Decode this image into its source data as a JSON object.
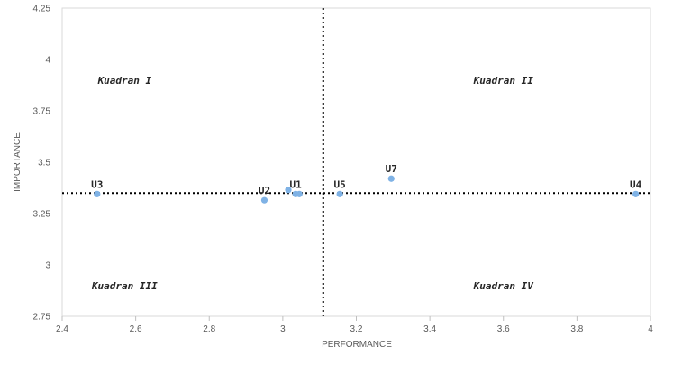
{
  "chart_data": {
    "type": "scatter",
    "xlabel": "PERFORMANCE",
    "ylabel": "IMPORTANCE",
    "xlim": [
      2.4,
      4
    ],
    "ylim": [
      2.75,
      4.25
    ],
    "xticks": [
      "2.4",
      "2.6",
      "2.8",
      "3",
      "3.2",
      "3.4",
      "3.6",
      "3.8",
      "4"
    ],
    "yticks": [
      "2.75",
      "3",
      "3.25",
      "3.5",
      "3.75",
      "4",
      "4.25"
    ],
    "grid": false,
    "marker_color": "#7fb2e5",
    "divider_x": 3.11,
    "divider_y": 3.35,
    "points": [
      {
        "label": "U1",
        "x": 3.035,
        "y": 3.345
      },
      {
        "label": "",
        "x": 3.045,
        "y": 3.345
      },
      {
        "label": "",
        "x": 3.015,
        "y": 3.365
      },
      {
        "label": "U2",
        "x": 2.95,
        "y": 3.315
      },
      {
        "label": "U3",
        "x": 2.495,
        "y": 3.345
      },
      {
        "label": "U4",
        "x": 3.96,
        "y": 3.345
      },
      {
        "label": "U5",
        "x": 3.155,
        "y": 3.345
      },
      {
        "label": "U7",
        "x": 3.295,
        "y": 3.42
      }
    ],
    "quadrants": [
      {
        "label": "Kuadran I",
        "x": 2.57,
        "y": 3.9
      },
      {
        "label": "Kuadran II",
        "x": 3.6,
        "y": 3.9
      },
      {
        "label": "Kuadran III",
        "x": 2.57,
        "y": 2.9
      },
      {
        "label": "Kuadran IV",
        "x": 3.6,
        "y": 2.9
      }
    ]
  }
}
